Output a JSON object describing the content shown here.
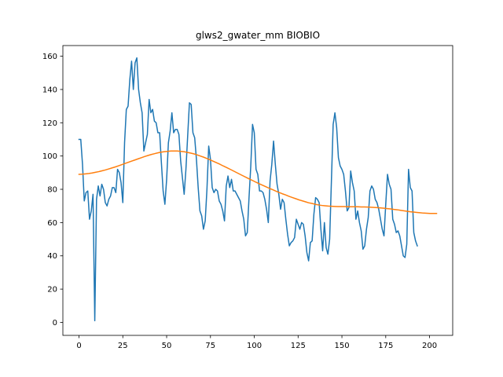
{
  "chart_data": {
    "type": "line",
    "title": "glws2_gwater_mm BIOBIO",
    "xlabel": "",
    "ylabel": "",
    "xlim": [
      -9.2,
      213.2
    ],
    "ylim": [
      -7.8,
      166.4
    ],
    "x_ticks": [
      0,
      25,
      50,
      75,
      100,
      125,
      150,
      175,
      200
    ],
    "y_ticks": [
      0,
      20,
      40,
      60,
      80,
      100,
      120,
      140,
      160
    ],
    "grid": false,
    "legend": "none",
    "series": [
      {
        "color": "#1f77b4",
        "values": [
          110,
          110,
          95,
          73,
          78,
          79,
          62,
          67,
          77,
          1,
          74,
          82,
          76,
          83,
          80,
          72,
          70,
          74,
          76,
          81,
          81,
          78,
          92,
          90,
          84,
          72,
          108,
          128,
          130,
          146,
          157,
          140,
          156,
          159,
          140,
          132,
          126,
          103,
          108,
          113,
          134,
          126,
          128,
          121,
          120,
          114,
          114,
          96,
          79,
          71,
          86,
          108,
          115,
          126,
          114,
          116,
          116,
          113,
          97,
          87,
          77,
          92,
          112,
          132,
          131,
          114,
          111,
          98,
          81,
          67,
          64,
          56,
          61,
          80,
          106,
          98,
          81,
          78,
          80,
          79,
          73,
          71,
          67,
          61,
          82,
          88,
          81,
          86,
          79,
          79,
          77,
          75,
          73,
          67,
          62,
          52,
          54,
          75,
          94,
          119,
          114,
          92,
          89,
          79,
          79,
          78,
          74,
          68,
          60,
          85,
          95,
          109,
          95,
          83,
          77,
          68,
          74,
          72,
          62,
          53,
          46,
          48,
          49,
          51,
          62,
          59,
          56,
          60,
          59,
          52,
          42,
          37,
          48,
          49,
          65,
          75,
          74,
          72,
          56,
          43,
          60,
          45,
          41,
          50,
          85,
          119,
          126,
          117,
          99,
          94,
          92,
          89,
          79,
          67,
          69,
          91,
          84,
          79,
          62,
          67,
          60,
          55,
          44,
          46,
          56,
          63,
          79,
          82,
          80,
          74,
          72,
          68,
          62,
          56,
          52,
          71,
          89,
          83,
          80,
          62,
          59,
          54,
          55,
          52,
          46,
          40,
          39,
          47,
          92,
          81,
          79,
          54,
          49,
          46
        ]
      },
      {
        "color": "#ff7f0e",
        "values": [
          89,
          89.1,
          89.3,
          89.5,
          89.8,
          90.2,
          90.6,
          91.1,
          91.6,
          92.2,
          92.8,
          93.4,
          94.1,
          94.8,
          95.5,
          96.2,
          96.9,
          97.6,
          98.3,
          99,
          99.7,
          100.3,
          100.9,
          101.4,
          101.9,
          102.3,
          102.6,
          102.8,
          103,
          103,
          103,
          102.8,
          102.6,
          102.2,
          101.8,
          101.3,
          100.7,
          100,
          99.3,
          98.5,
          97.7,
          96.8,
          95.9,
          95,
          94,
          93.1,
          92.1,
          91.1,
          90.1,
          89.1,
          88.1,
          87.1,
          86.1,
          85.2,
          84.2,
          83.3,
          82.4,
          81.5,
          80.6,
          79.8,
          78.9,
          78.1,
          77.3,
          76.6,
          75.8,
          75.1,
          74.4,
          73.7,
          73.1,
          72.5,
          71.9,
          71.5,
          71,
          70.6,
          70.3,
          70.1,
          69.9,
          69.8,
          69.7,
          69.6,
          69.6,
          69.6,
          69.5,
          69.5,
          69.5,
          69.5,
          69.4,
          69.4,
          69.3,
          69.2,
          69.1,
          69,
          68.8,
          68.6,
          68.4,
          68.2,
          67.9,
          67.7,
          67.4,
          67.1,
          66.8,
          66.5,
          66.3,
          66.1,
          65.9,
          65.7,
          65.6,
          65.5,
          65.5,
          65.5
        ],
        "x": [
          0,
          1.87,
          3.74,
          5.61,
          7.49,
          9.36,
          11.23,
          13.1,
          14.97,
          16.84,
          18.72,
          20.59,
          22.46,
          24.33,
          26.2,
          28.07,
          29.94,
          31.82,
          33.69,
          35.56,
          37.43,
          39.3,
          41.17,
          43.05,
          44.92,
          46.79,
          48.66,
          50.53,
          52.4,
          54.28,
          56.15,
          58.02,
          59.89,
          61.76,
          63.63,
          65.5,
          67.38,
          69.25,
          71.12,
          72.99,
          74.86,
          76.73,
          78.61,
          80.48,
          82.35,
          84.22,
          86.09,
          87.96,
          89.83,
          91.71,
          93.58,
          95.45,
          97.32,
          99.19,
          101.06,
          102.94,
          104.81,
          106.68,
          108.55,
          110.42,
          112.29,
          114.17,
          116.04,
          117.91,
          119.78,
          121.65,
          123.52,
          125.39,
          127.27,
          129.14,
          131.01,
          132.88,
          134.75,
          136.62,
          138.5,
          140.37,
          142.24,
          144.11,
          145.98,
          147.85,
          149.72,
          151.6,
          153.47,
          155.34,
          157.21,
          159.08,
          160.95,
          162.83,
          164.7,
          166.57,
          168.44,
          170.31,
          172.18,
          174.06,
          175.93,
          177.8,
          179.67,
          181.54,
          183.41,
          185.28,
          187.16,
          189.03,
          190.9,
          192.77,
          194.64,
          196.51,
          198.39,
          200.26,
          202.13,
          204
        ]
      }
    ]
  }
}
